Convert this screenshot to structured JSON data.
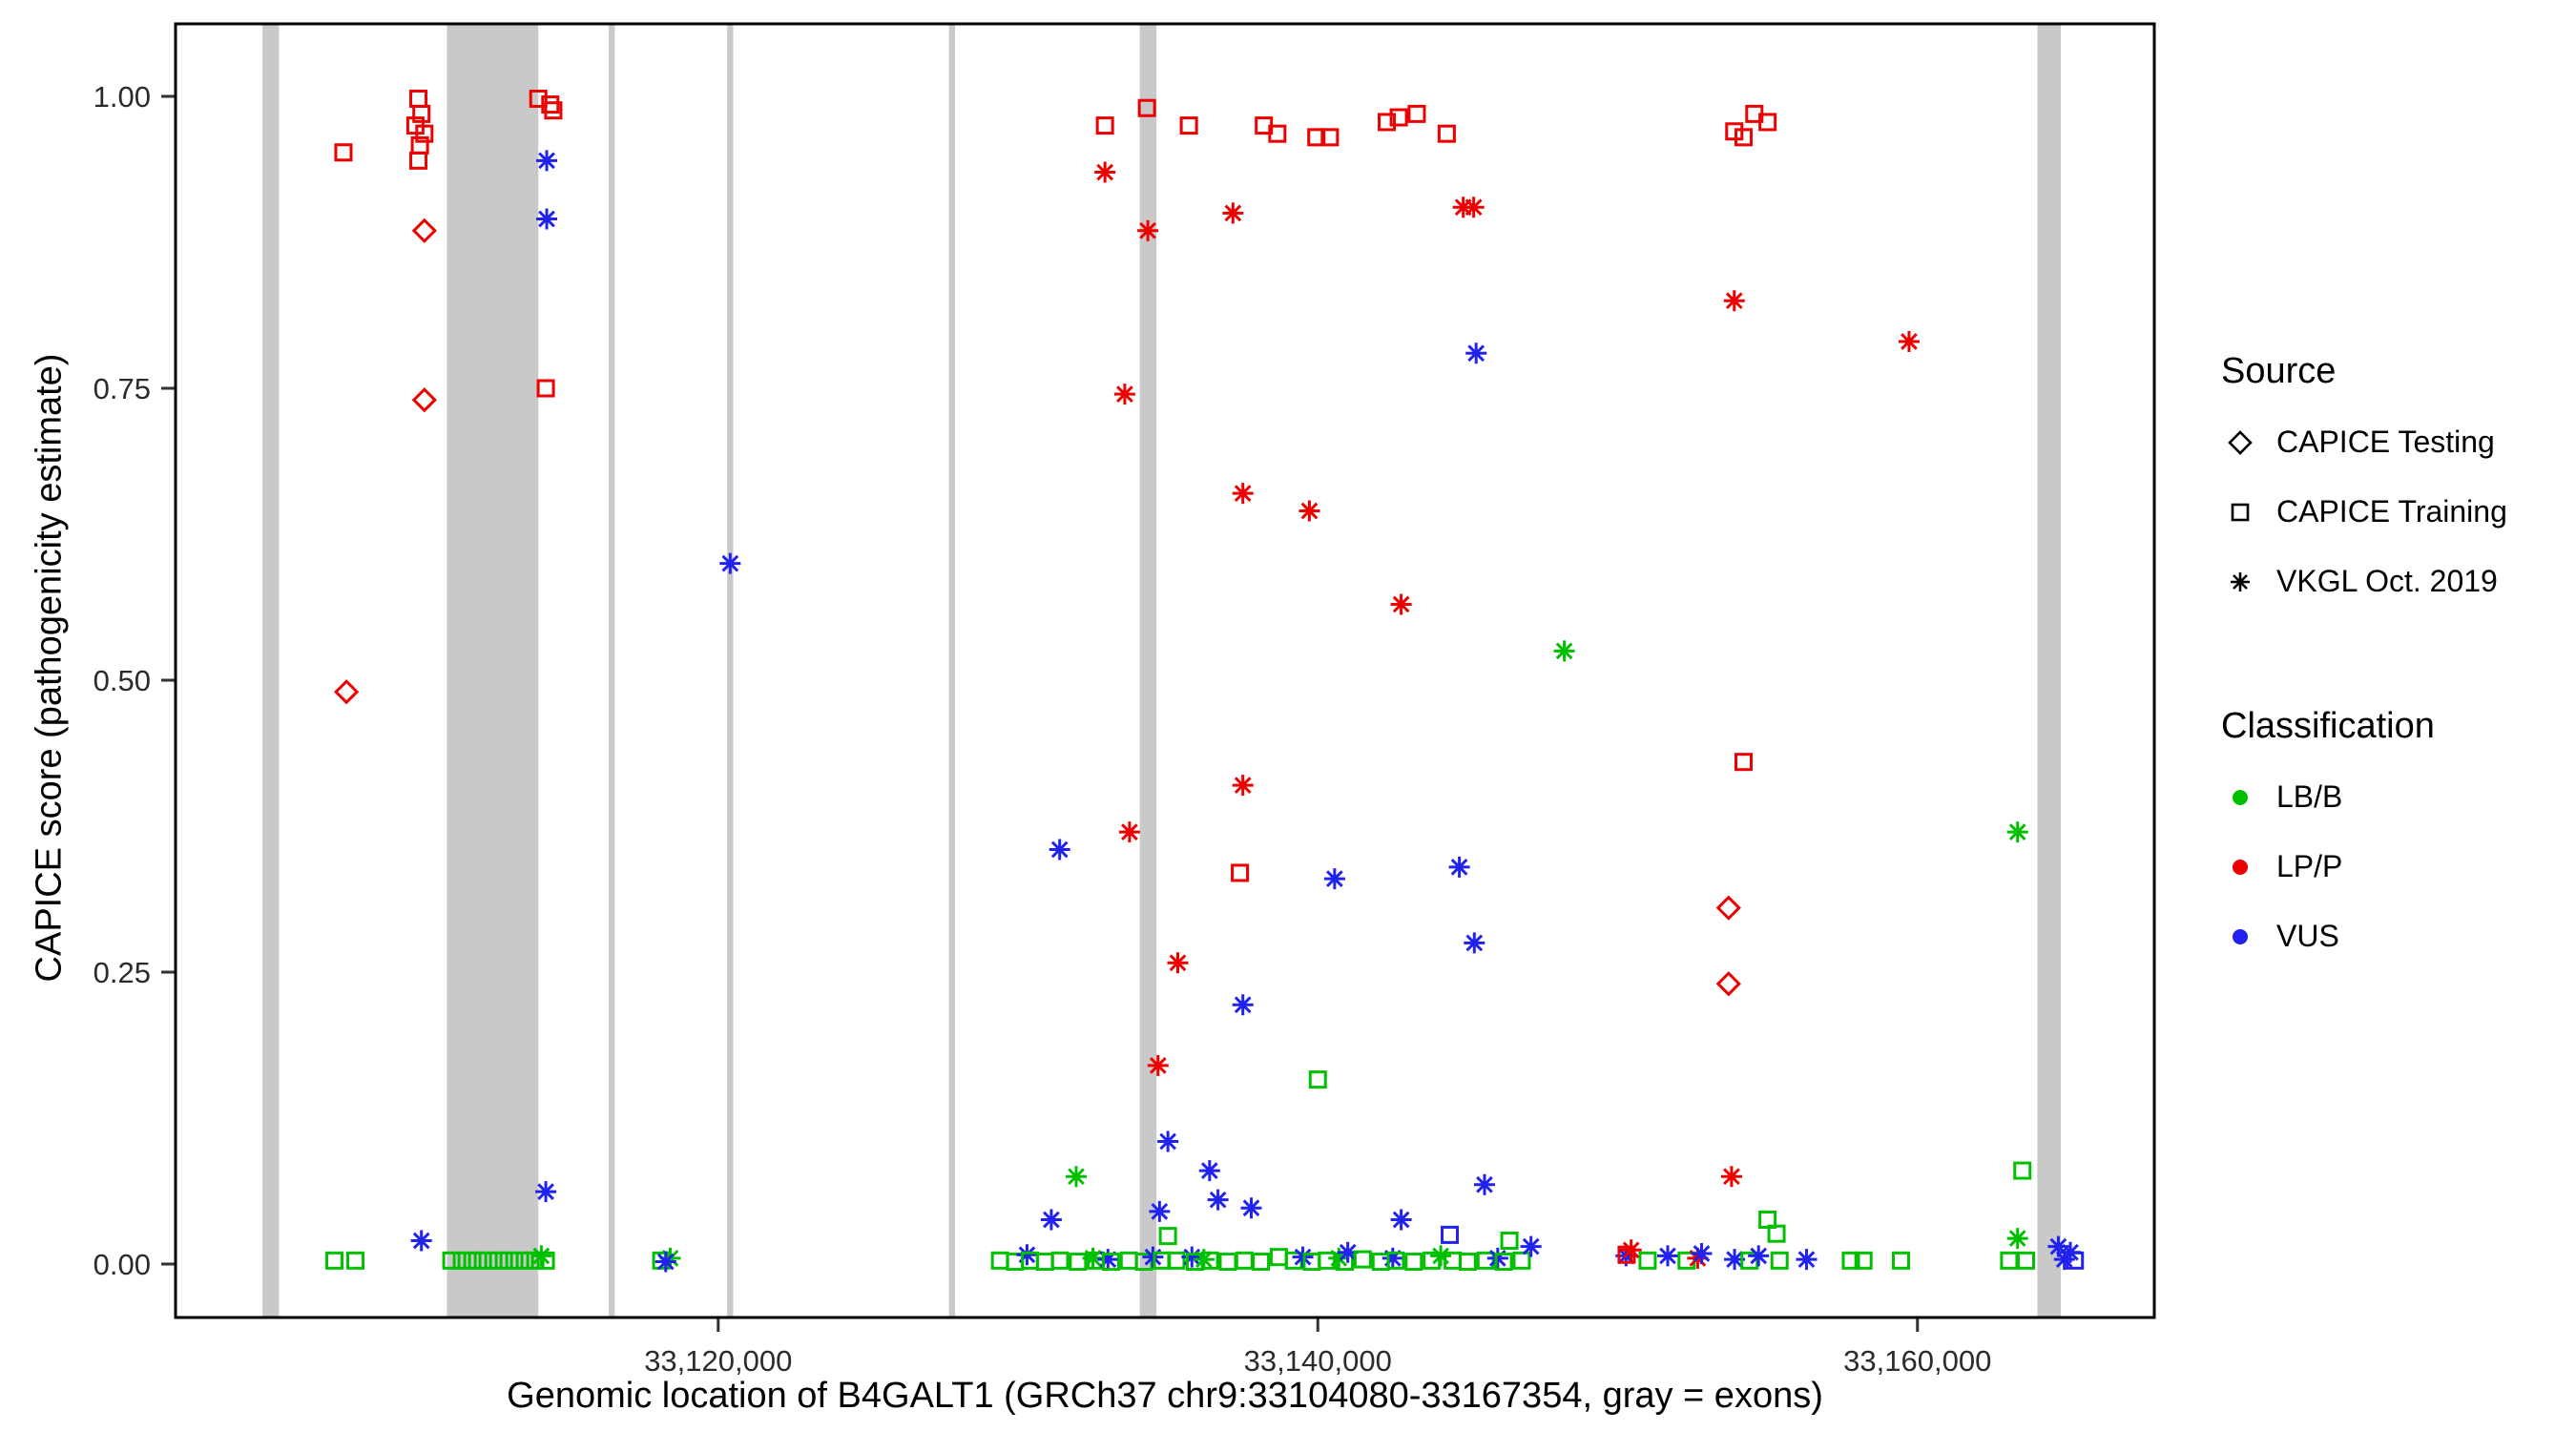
{
  "chart_data": {
    "type": "scatter",
    "title": "",
    "xlabel": "Genomic location of B4GALT1 (GRCh37 chr9:33104080-33167354, gray = exons)",
    "ylabel": "CAPICE score (pathogenicity estimate)",
    "x_domain": [
      33101900,
      33167900
    ],
    "y_domain": [
      0,
      1
    ],
    "grid": "off",
    "legend_position": "right",
    "x_ticks": [
      {
        "value": 33120000,
        "label": "33,120,000"
      },
      {
        "value": 33140000,
        "label": "33,140,000"
      },
      {
        "value": 33160000,
        "label": "33,160,000"
      }
    ],
    "y_ticks": [
      {
        "value": 0.0,
        "label": "0.00"
      },
      {
        "value": 0.25,
        "label": "0.25"
      },
      {
        "value": 0.5,
        "label": "0.50"
      },
      {
        "value": 0.75,
        "label": "0.75"
      },
      {
        "value": 1.0,
        "label": "1.00"
      }
    ],
    "exon_color": "#C9C9C9",
    "exons": [
      [
        33104800,
        33105350
      ],
      [
        33110950,
        33114000
      ],
      [
        33116350,
        33116550
      ],
      [
        33120300,
        33120500
      ],
      [
        33127700,
        33127900
      ],
      [
        33134060,
        33134620
      ],
      [
        33164000,
        33164780
      ]
    ],
    "legend": {
      "source": {
        "title": "Source",
        "items": [
          {
            "label": "CAPICE Testing",
            "shape": "open-diamond"
          },
          {
            "label": "CAPICE Training",
            "shape": "open-square"
          },
          {
            "label": "VKGL Oct. 2019",
            "shape": "asterisk"
          }
        ]
      },
      "classification": {
        "title": "Classification",
        "items": [
          {
            "label": "LB/B",
            "color": "#00C000"
          },
          {
            "label": "LP/P",
            "color": "#EE0000"
          },
          {
            "label": "VUS",
            "color": "#2222EE"
          }
        ]
      }
    },
    "point_format": [
      "genomic_position",
      "capice_score",
      "source_code",
      "classification_code"
    ],
    "source_codes": {
      "d": {
        "label": "CAPICE Testing",
        "shape": "open-diamond"
      },
      "s": {
        "label": "CAPICE Training",
        "shape": "open-square"
      },
      "a": {
        "label": "VKGL Oct. 2019",
        "shape": "asterisk"
      }
    },
    "class_codes": {
      "g": {
        "label": "LB/B",
        "color": "#00C000"
      },
      "r": {
        "label": "LP/P",
        "color": "#EE0000"
      },
      "b": {
        "label": "VUS",
        "color": "#2222EE"
      }
    },
    "points": [
      [
        33107200,
        0.003,
        "s",
        "g"
      ],
      [
        33107900,
        0.003,
        "s",
        "g"
      ],
      [
        33107500,
        0.952,
        "s",
        "r"
      ],
      [
        33107600,
        0.49,
        "d",
        "r"
      ],
      [
        33109900,
        0.975,
        "s",
        "r"
      ],
      [
        33110000,
        0.998,
        "s",
        "r"
      ],
      [
        33110100,
        0.985,
        "s",
        "r"
      ],
      [
        33110200,
        0.968,
        "s",
        "r"
      ],
      [
        33110050,
        0.958,
        "s",
        "r"
      ],
      [
        33110000,
        0.945,
        "s",
        "r"
      ],
      [
        33110200,
        0.885,
        "d",
        "r"
      ],
      [
        33110200,
        0.74,
        "d",
        "r"
      ],
      [
        33110100,
        0.02,
        "a",
        "b"
      ],
      [
        33111100,
        0.003,
        "s",
        "g"
      ],
      [
        33111450,
        0.003,
        "s",
        "g"
      ],
      [
        33111800,
        0.003,
        "s",
        "g"
      ],
      [
        33112150,
        0.003,
        "s",
        "g"
      ],
      [
        33112500,
        0.003,
        "s",
        "g"
      ],
      [
        33112850,
        0.003,
        "s",
        "g"
      ],
      [
        33113200,
        0.003,
        "s",
        "g"
      ],
      [
        33113550,
        0.003,
        "s",
        "g"
      ],
      [
        33113900,
        0.003,
        "s",
        "g"
      ],
      [
        33114250,
        0.003,
        "s",
        "g"
      ],
      [
        33114100,
        0.007,
        "a",
        "g"
      ],
      [
        33114000,
        0.998,
        "s",
        "r"
      ],
      [
        33114400,
        0.993,
        "s",
        "r"
      ],
      [
        33114500,
        0.988,
        "s",
        "r"
      ],
      [
        33114280,
        0.945,
        "a",
        "b"
      ],
      [
        33114280,
        0.895,
        "a",
        "b"
      ],
      [
        33114250,
        0.75,
        "s",
        "r"
      ],
      [
        33114250,
        0.062,
        "a",
        "b"
      ],
      [
        33118100,
        0.003,
        "s",
        "g"
      ],
      [
        33118400,
        0.005,
        "a",
        "g"
      ],
      [
        33118250,
        0.002,
        "a",
        "b"
      ],
      [
        33120400,
        0.6,
        "a",
        "b"
      ],
      [
        33129400,
        0.003,
        "s",
        "g"
      ],
      [
        33129900,
        0.002,
        "s",
        "g"
      ],
      [
        33130300,
        0.008,
        "a",
        "b"
      ],
      [
        33130400,
        0.003,
        "s",
        "g"
      ],
      [
        33130900,
        0.002,
        "s",
        "g"
      ],
      [
        33131110,
        0.038,
        "a",
        "b"
      ],
      [
        33131390,
        0.355,
        "a",
        "b"
      ],
      [
        33131400,
        0.003,
        "s",
        "g"
      ],
      [
        33131940,
        0.075,
        "a",
        "g"
      ],
      [
        33132000,
        0.002,
        "s",
        "g"
      ],
      [
        33132500,
        0.005,
        "a",
        "g"
      ],
      [
        33132600,
        0.003,
        "s",
        "g"
      ],
      [
        33132900,
        0.975,
        "s",
        "r"
      ],
      [
        33132900,
        0.935,
        "a",
        "r"
      ],
      [
        33133000,
        0.004,
        "a",
        "b"
      ],
      [
        33133100,
        0.002,
        "s",
        "g"
      ],
      [
        33133560,
        0.745,
        "a",
        "r"
      ],
      [
        33133700,
        0.003,
        "s",
        "g"
      ],
      [
        33133720,
        0.37,
        "a",
        "r"
      ],
      [
        33134200,
        0.002,
        "s",
        "g"
      ],
      [
        33134300,
        0.99,
        "s",
        "r"
      ],
      [
        33134330,
        0.885,
        "a",
        "r"
      ],
      [
        33134500,
        0.006,
        "a",
        "b"
      ],
      [
        33134670,
        0.17,
        "a",
        "r"
      ],
      [
        33134720,
        0.045,
        "a",
        "b"
      ],
      [
        33134800,
        0.003,
        "s",
        "g"
      ],
      [
        33135000,
        0.105,
        "a",
        "b"
      ],
      [
        33135000,
        0.024,
        "s",
        "g"
      ],
      [
        33135280,
        0.003,
        "s",
        "g"
      ],
      [
        33135330,
        0.258,
        "a",
        "r"
      ],
      [
        33135700,
        0.975,
        "s",
        "r"
      ],
      [
        33135800,
        0.006,
        "a",
        "b"
      ],
      [
        33135900,
        0.002,
        "s",
        "g"
      ],
      [
        33136200,
        0.004,
        "a",
        "g"
      ],
      [
        33136390,
        0.08,
        "a",
        "b"
      ],
      [
        33136400,
        0.003,
        "s",
        "g"
      ],
      [
        33136670,
        0.055,
        "a",
        "b"
      ],
      [
        33137000,
        0.002,
        "s",
        "g"
      ],
      [
        33137170,
        0.9,
        "a",
        "r"
      ],
      [
        33137400,
        0.335,
        "s",
        "r"
      ],
      [
        33137500,
        0.66,
        "a",
        "r"
      ],
      [
        33137500,
        0.41,
        "a",
        "r"
      ],
      [
        33137500,
        0.222,
        "a",
        "b"
      ],
      [
        33137550,
        0.003,
        "s",
        "g"
      ],
      [
        33137780,
        0.048,
        "a",
        "b"
      ],
      [
        33138100,
        0.002,
        "s",
        "g"
      ],
      [
        33138200,
        0.975,
        "s",
        "r"
      ],
      [
        33138650,
        0.968,
        "s",
        "r"
      ],
      [
        33138700,
        0.006,
        "s",
        "g"
      ],
      [
        33139200,
        0.003,
        "s",
        "g"
      ],
      [
        33139500,
        0.006,
        "a",
        "b"
      ],
      [
        33139720,
        0.645,
        "a",
        "r"
      ],
      [
        33139800,
        0.002,
        "s",
        "g"
      ],
      [
        33139950,
        0.965,
        "s",
        "r"
      ],
      [
        33140000,
        0.158,
        "s",
        "g"
      ],
      [
        33140300,
        0.003,
        "s",
        "g"
      ],
      [
        33140400,
        0.965,
        "s",
        "r"
      ],
      [
        33140560,
        0.33,
        "a",
        "b"
      ],
      [
        33140700,
        0.005,
        "a",
        "g"
      ],
      [
        33140900,
        0.002,
        "s",
        "g"
      ],
      [
        33141000,
        0.01,
        "a",
        "b"
      ],
      [
        33141500,
        0.004,
        "s",
        "g"
      ],
      [
        33142100,
        0.002,
        "s",
        "g"
      ],
      [
        33142300,
        0.978,
        "s",
        "r"
      ],
      [
        33142500,
        0.005,
        "a",
        "b"
      ],
      [
        33142600,
        0.003,
        "s",
        "g"
      ],
      [
        33142700,
        0.982,
        "s",
        "r"
      ],
      [
        33142780,
        0.565,
        "a",
        "r"
      ],
      [
        33142780,
        0.038,
        "a",
        "b"
      ],
      [
        33143200,
        0.002,
        "s",
        "g"
      ],
      [
        33143300,
        0.985,
        "s",
        "r"
      ],
      [
        33143800,
        0.003,
        "s",
        "g"
      ],
      [
        33144100,
        0.007,
        "a",
        "g"
      ],
      [
        33144300,
        0.968,
        "s",
        "r"
      ],
      [
        33144400,
        0.025,
        "s",
        "b"
      ],
      [
        33144500,
        0.003,
        "s",
        "g"
      ],
      [
        33144720,
        0.34,
        "a",
        "b"
      ],
      [
        33144850,
        0.905,
        "a",
        "r"
      ],
      [
        33145000,
        0.002,
        "s",
        "g"
      ],
      [
        33145200,
        0.905,
        "a",
        "r"
      ],
      [
        33145220,
        0.275,
        "a",
        "b"
      ],
      [
        33145280,
        0.78,
        "a",
        "b"
      ],
      [
        33145560,
        0.068,
        "a",
        "b"
      ],
      [
        33145600,
        0.003,
        "s",
        "g"
      ],
      [
        33146000,
        0.005,
        "a",
        "b"
      ],
      [
        33146200,
        0.002,
        "s",
        "g"
      ],
      [
        33146390,
        0.02,
        "s",
        "g"
      ],
      [
        33146800,
        0.003,
        "s",
        "g"
      ],
      [
        33147110,
        0.015,
        "a",
        "b"
      ],
      [
        33148220,
        0.525,
        "a",
        "g"
      ],
      [
        33150280,
        0.007,
        "a",
        "b"
      ],
      [
        33150300,
        0.008,
        "s",
        "r"
      ],
      [
        33150450,
        0.012,
        "a",
        "r"
      ],
      [
        33151000,
        0.003,
        "s",
        "g"
      ],
      [
        33151670,
        0.007,
        "a",
        "b"
      ],
      [
        33152300,
        0.003,
        "s",
        "g"
      ],
      [
        33152670,
        0.005,
        "a",
        "r"
      ],
      [
        33152800,
        0.009,
        "a",
        "b"
      ],
      [
        33153700,
        0.305,
        "d",
        "r"
      ],
      [
        33153700,
        0.24,
        "d",
        "r"
      ],
      [
        33153800,
        0.075,
        "a",
        "r"
      ],
      [
        33153890,
        0.97,
        "s",
        "r"
      ],
      [
        33153890,
        0.825,
        "a",
        "r"
      ],
      [
        33153900,
        0.004,
        "a",
        "b"
      ],
      [
        33154200,
        0.965,
        "s",
        "r"
      ],
      [
        33154200,
        0.43,
        "s",
        "r"
      ],
      [
        33154400,
        0.003,
        "s",
        "g"
      ],
      [
        33154560,
        0.985,
        "s",
        "r"
      ],
      [
        33154700,
        0.007,
        "a",
        "b"
      ],
      [
        33155000,
        0.978,
        "s",
        "r"
      ],
      [
        33155000,
        0.038,
        "s",
        "g"
      ],
      [
        33155300,
        0.026,
        "s",
        "g"
      ],
      [
        33155400,
        0.003,
        "s",
        "g"
      ],
      [
        33156300,
        0.004,
        "a",
        "b"
      ],
      [
        33157780,
        0.003,
        "s",
        "g"
      ],
      [
        33158200,
        0.003,
        "s",
        "g"
      ],
      [
        33159450,
        0.003,
        "s",
        "g"
      ],
      [
        33159720,
        0.79,
        "a",
        "r"
      ],
      [
        33163060,
        0.003,
        "s",
        "g"
      ],
      [
        33163340,
        0.37,
        "a",
        "g"
      ],
      [
        33163340,
        0.022,
        "a",
        "g"
      ],
      [
        33163500,
        0.08,
        "s",
        "g"
      ],
      [
        33163620,
        0.003,
        "s",
        "g"
      ],
      [
        33164700,
        0.015,
        "a",
        "b"
      ],
      [
        33164900,
        0.004,
        "a",
        "b"
      ],
      [
        33165100,
        0.01,
        "a",
        "b"
      ],
      [
        33165250,
        0.003,
        "s",
        "b"
      ]
    ]
  }
}
